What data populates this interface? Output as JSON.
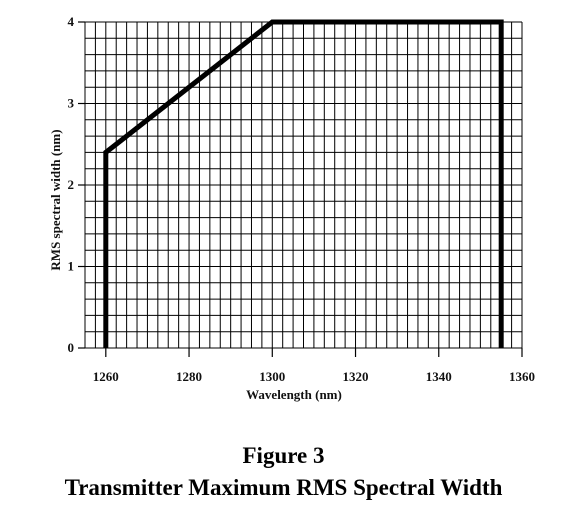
{
  "chart_data": {
    "type": "line",
    "title": "Transmitter Maximum RMS Spectral Width",
    "figure_number": "Figure 3",
    "xlabel": "Wavelength (nm)",
    "ylabel": "RMS spectral width (nm)",
    "xlim": [
      1255,
      1360
    ],
    "ylim": [
      0,
      4
    ],
    "x_ticks": [
      1260,
      1280,
      1300,
      1320,
      1340,
      1360
    ],
    "y_ticks": [
      0,
      1,
      2,
      3,
      4
    ],
    "grid": true,
    "series": [
      {
        "x": [
          1260,
          1260,
          1300,
          1355,
          1355
        ],
        "y": [
          0,
          2.4,
          4,
          4,
          0
        ]
      }
    ],
    "line_color": "#000000",
    "grid_color": "#000000"
  }
}
